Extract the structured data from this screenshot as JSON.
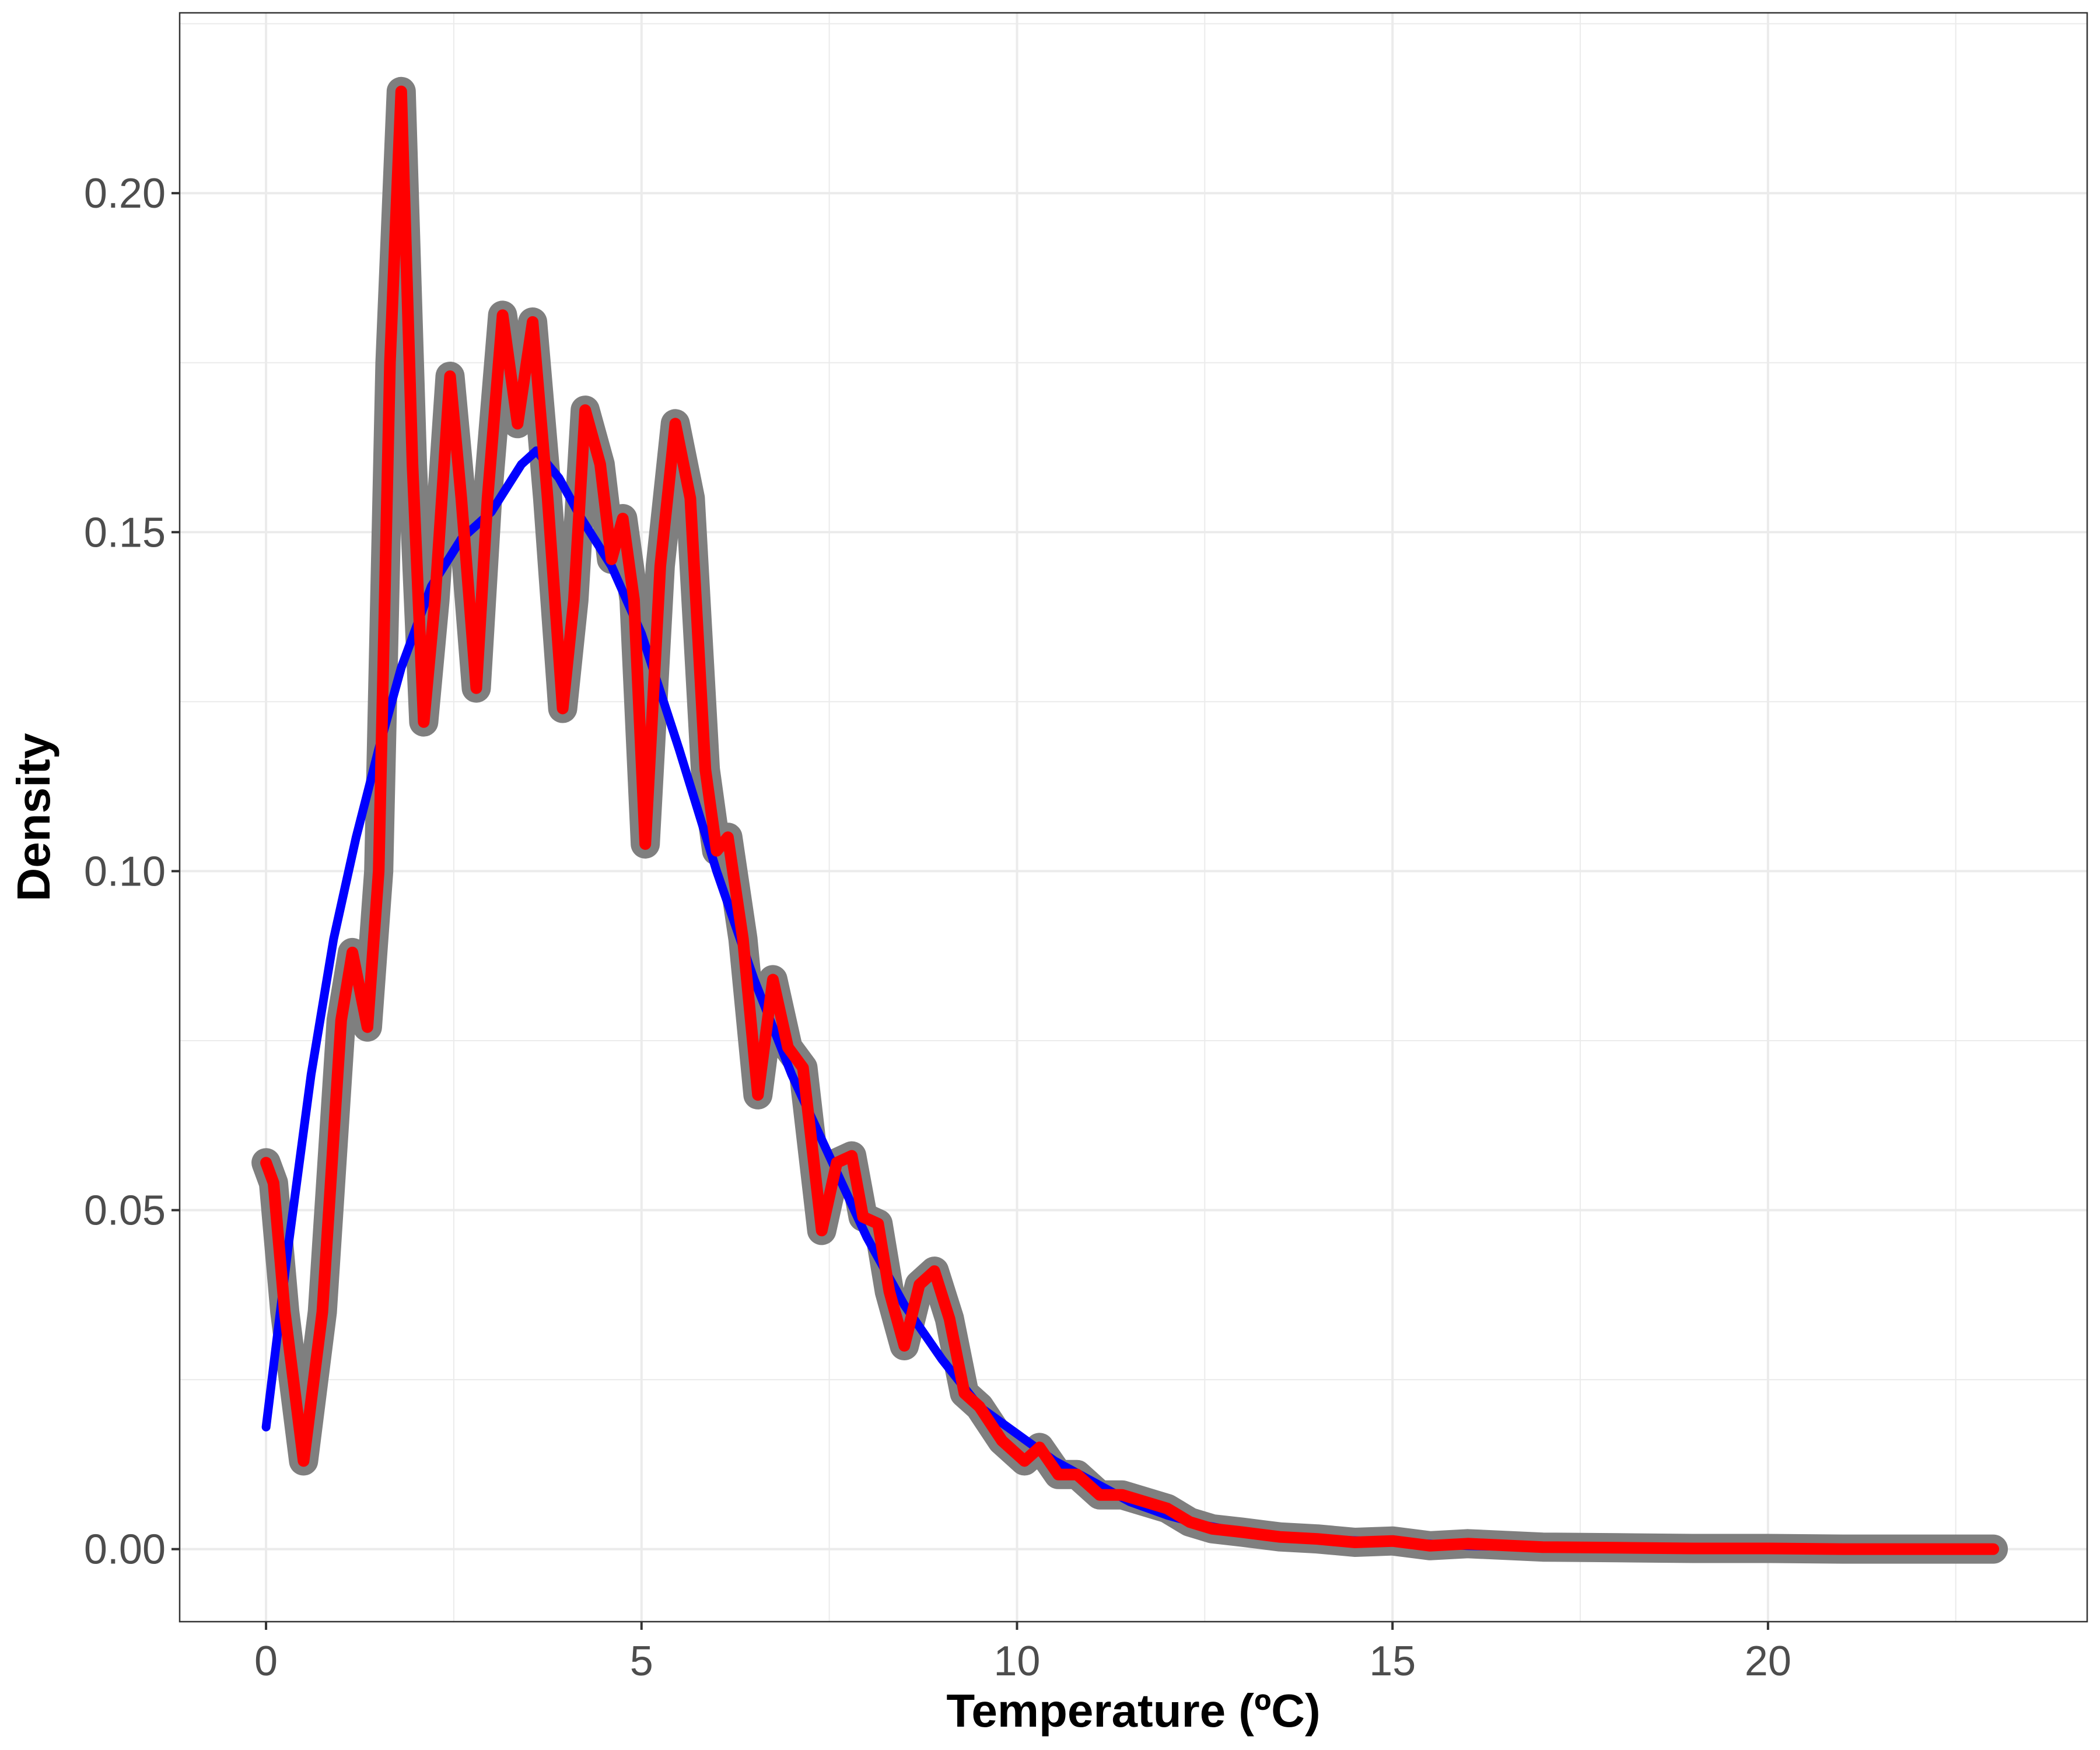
{
  "chart_data": {
    "type": "line",
    "title": "",
    "xlabel": "Temperature (ºC)",
    "ylabel": "Density",
    "xlim": [
      -1.15,
      24.25
    ],
    "ylim": [
      -0.0107,
      0.2266
    ],
    "x_ticks": [
      0,
      5,
      10,
      15,
      20
    ],
    "x_tick_labels": [
      "0",
      "5",
      "10",
      "15",
      "20"
    ],
    "y_ticks": [
      0.0,
      0.05,
      0.1,
      0.15,
      0.2
    ],
    "y_tick_labels": [
      "0.00",
      "0.05",
      "0.10",
      "0.15",
      "0.20"
    ],
    "grid": true,
    "legend": "none",
    "colors": {
      "halo": "#7f7f7f",
      "detailed": "#ff0000",
      "smooth": "#0000ff",
      "grid": "#ebebeb",
      "panel_border": "#333333"
    },
    "series": [
      {
        "color": "#0000ff",
        "x": [
          0.0,
          0.3,
          0.6,
          0.9,
          1.2,
          1.5,
          1.8,
          2.2,
          2.6,
          3.0,
          3.4,
          3.6,
          3.9,
          4.2,
          4.6,
          5.0,
          5.5,
          6.0,
          6.5,
          7.0,
          7.5,
          8.0,
          8.5,
          9.0,
          9.5,
          10.0,
          10.5,
          11.0,
          11.5,
          12.0,
          12.5,
          13.0,
          14.0,
          15.0,
          16.0,
          17.0,
          18.0,
          20.0,
          23.0
        ],
        "y": [
          0.018,
          0.045,
          0.07,
          0.09,
          0.105,
          0.118,
          0.13,
          0.142,
          0.149,
          0.153,
          0.16,
          0.162,
          0.158,
          0.152,
          0.145,
          0.135,
          0.118,
          0.1,
          0.084,
          0.07,
          0.058,
          0.046,
          0.036,
          0.028,
          0.021,
          0.017,
          0.013,
          0.01,
          0.007,
          0.005,
          0.0035,
          0.0025,
          0.0015,
          0.001,
          0.0005,
          0.0003,
          0.0002,
          0.0001,
          0.0
        ]
      },
      {
        "color": "#ff0000",
        "x": [
          0.0,
          0.1,
          0.25,
          0.5,
          0.75,
          1.0,
          1.15,
          1.35,
          1.5,
          1.65,
          1.8,
          1.95,
          2.1,
          2.25,
          2.45,
          2.6,
          2.8,
          2.95,
          3.15,
          3.35,
          3.55,
          3.75,
          3.95,
          4.1,
          4.25,
          4.45,
          4.6,
          4.75,
          4.9,
          5.05,
          5.25,
          5.45,
          5.65,
          5.85,
          6.0,
          6.15,
          6.35,
          6.55,
          6.75,
          6.95,
          7.15,
          7.4,
          7.6,
          7.8,
          7.95,
          8.15,
          8.3,
          8.5,
          8.7,
          8.9,
          9.1,
          9.3,
          9.5,
          9.8,
          10.1,
          10.3,
          10.55,
          10.8,
          11.1,
          11.4,
          11.7,
          12.0,
          12.3,
          12.6,
          13.0,
          13.5,
          14.0,
          14.5,
          15.0,
          15.5,
          16.0,
          17.0,
          18.0,
          19.0,
          20.0,
          21.0,
          23.0
        ],
        "y": [
          0.057,
          0.054,
          0.035,
          0.013,
          0.035,
          0.078,
          0.088,
          0.077,
          0.1,
          0.175,
          0.215,
          0.16,
          0.122,
          0.14,
          0.173,
          0.155,
          0.127,
          0.155,
          0.182,
          0.166,
          0.181,
          0.155,
          0.124,
          0.14,
          0.168,
          0.16,
          0.146,
          0.152,
          0.14,
          0.104,
          0.145,
          0.166,
          0.155,
          0.115,
          0.103,
          0.105,
          0.09,
          0.067,
          0.084,
          0.074,
          0.071,
          0.047,
          0.057,
          0.058,
          0.049,
          0.048,
          0.038,
          0.03,
          0.039,
          0.041,
          0.034,
          0.023,
          0.021,
          0.016,
          0.013,
          0.015,
          0.011,
          0.011,
          0.008,
          0.008,
          0.007,
          0.006,
          0.004,
          0.003,
          0.0025,
          0.0018,
          0.0015,
          0.001,
          0.0012,
          0.0005,
          0.0008,
          0.0003,
          0.0002,
          0.0001,
          0.0001,
          0.0,
          0.0
        ]
      }
    ]
  }
}
